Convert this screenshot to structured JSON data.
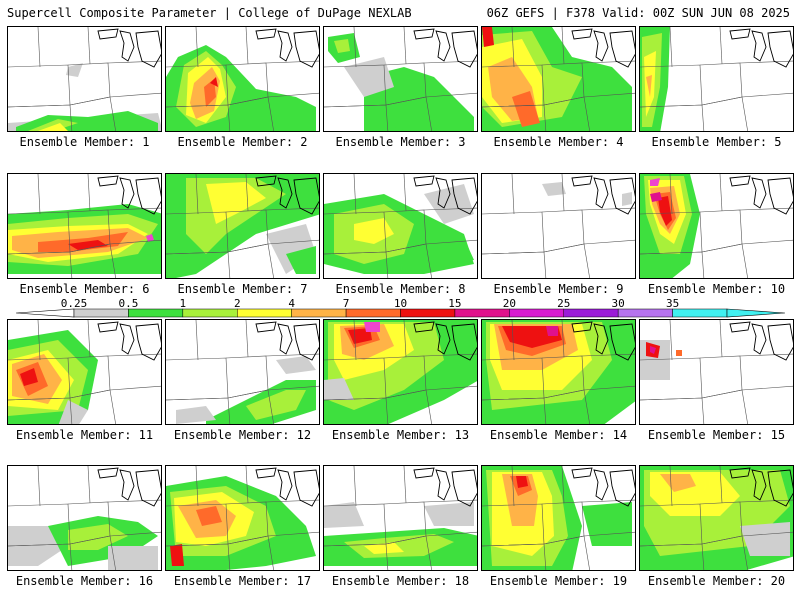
{
  "header": {
    "left": "Supercell Composite Parameter | College of DuPage NEXLAB",
    "right": "06Z GEFS | F378 Valid: 00Z SUN JUN 08 2025"
  },
  "colorbar": {
    "labels": [
      "0.25",
      "0.5",
      "1",
      "2",
      "4",
      "7",
      "10",
      "15",
      "20",
      "25",
      "30",
      "35"
    ],
    "colors": [
      "#cfcfcf",
      "#3ee03e",
      "#a8f03a",
      "#ffff33",
      "#ffb347",
      "#ff6a2a",
      "#ee1111",
      "#e0118c",
      "#d81bd0",
      "#9b1bd8",
      "#b673ee",
      "#40f0f0"
    ]
  },
  "panels": [
    {
      "label": "Ensemble Member: 1"
    },
    {
      "label": "Ensemble Member: 2"
    },
    {
      "label": "Ensemble Member: 3"
    },
    {
      "label": "Ensemble Member: 4"
    },
    {
      "label": "Ensemble Member: 5"
    },
    {
      "label": "Ensemble Member: 6"
    },
    {
      "label": "Ensemble Member: 7"
    },
    {
      "label": "Ensemble Member: 8"
    },
    {
      "label": "Ensemble Member: 9"
    },
    {
      "label": "Ensemble Member: 10"
    },
    {
      "label": "Ensemble Member: 11"
    },
    {
      "label": "Ensemble Member: 12"
    },
    {
      "label": "Ensemble Member: 13"
    },
    {
      "label": "Ensemble Member: 14"
    },
    {
      "label": "Ensemble Member: 15"
    },
    {
      "label": "Ensemble Member: 16"
    },
    {
      "label": "Ensemble Member: 17"
    },
    {
      "label": "Ensemble Member: 18"
    },
    {
      "label": "Ensemble Member: 19"
    },
    {
      "label": "Ensemble Member: 20"
    }
  ]
}
